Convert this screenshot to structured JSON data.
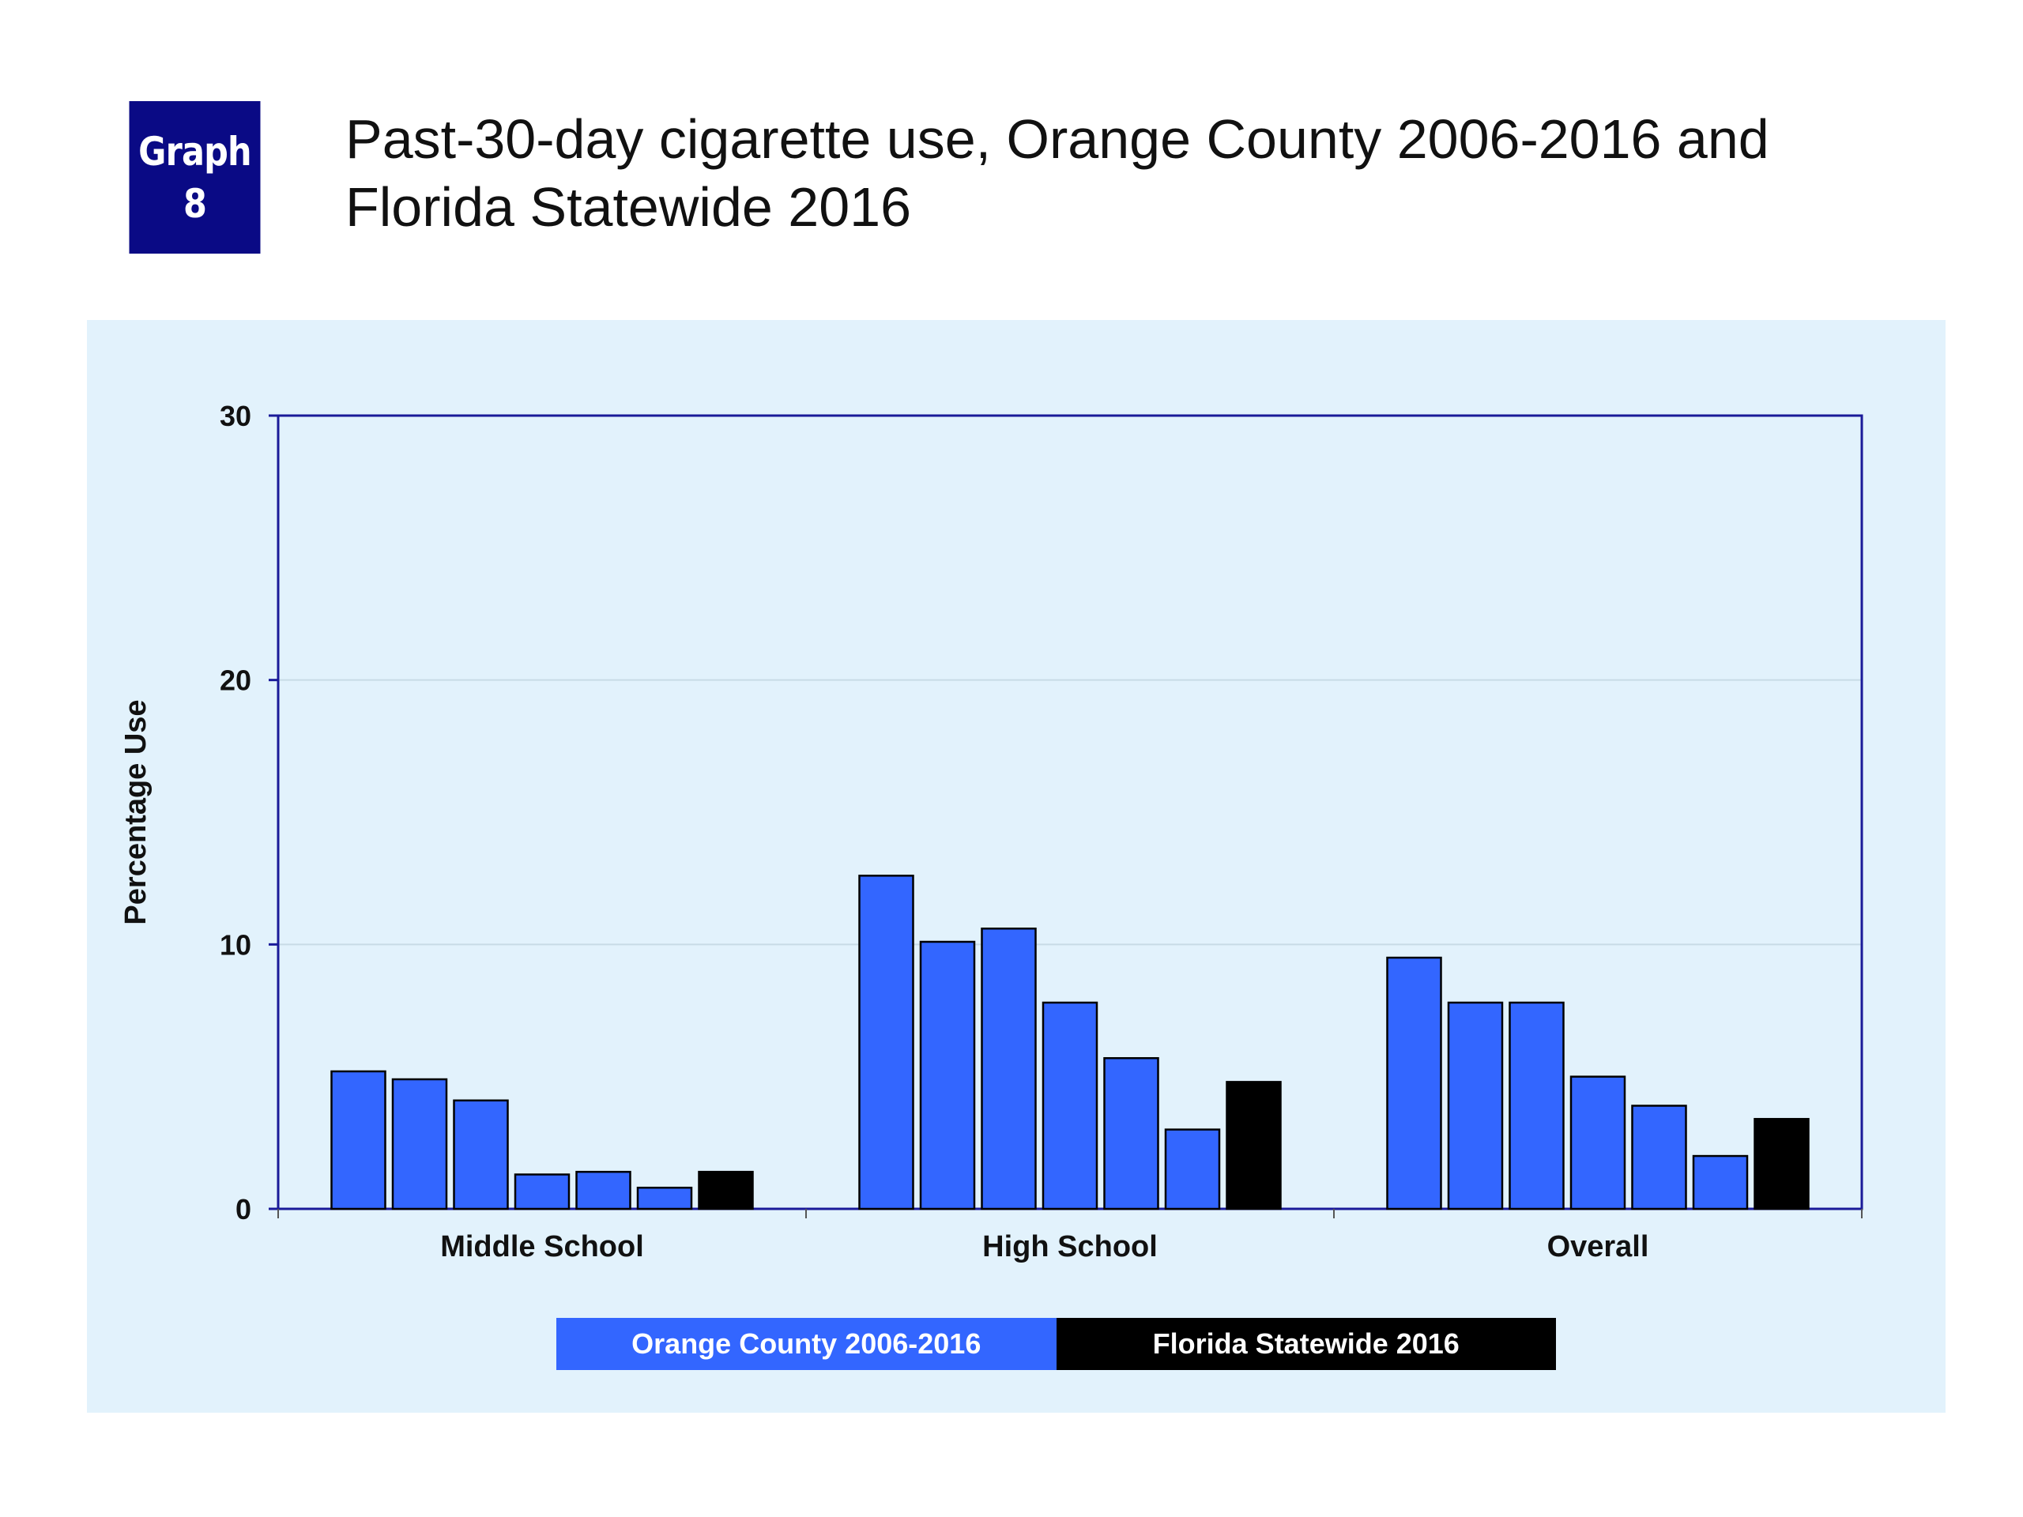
{
  "badge": {
    "line1": "Graph",
    "line2": "8"
  },
  "title": {
    "line1": "Past-30-day cigarette use, Orange County 2006-2016 and",
    "line2": "Florida Statewide 2016"
  },
  "colors": {
    "orange_county": "#3366ff",
    "florida": "#000000",
    "axis": "#1a1a99",
    "panel_bg": "#e2f2fc",
    "badge_bg": "#0a0a85"
  },
  "chart_data": {
    "type": "bar",
    "title": "Past-30-day cigarette use, Orange County 2006-2016 and Florida Statewide 2016",
    "xlabel": "",
    "ylabel": "Percentage Use",
    "ylim": [
      0,
      30
    ],
    "yticks": [
      0,
      10,
      20,
      30
    ],
    "grid": true,
    "categories": [
      "Middle School",
      "High School",
      "Overall"
    ],
    "groups": [
      {
        "category": "Middle School",
        "orange_county": [
          5.2,
          4.9,
          4.1,
          1.3,
          1.4,
          0.8
        ],
        "florida": 1.4
      },
      {
        "category": "High School",
        "orange_county": [
          12.6,
          10.1,
          10.6,
          7.8,
          5.7,
          3.0
        ],
        "florida": 4.8
      },
      {
        "category": "Overall",
        "orange_county": [
          9.5,
          7.8,
          7.8,
          5.0,
          3.9,
          2.0
        ],
        "florida": 3.4
      }
    ],
    "legend": [
      {
        "label": "Orange County 2006-2016",
        "color": "#3366ff"
      },
      {
        "label": "Florida Statewide 2016",
        "color": "#000000"
      }
    ],
    "legend_position": "bottom"
  }
}
